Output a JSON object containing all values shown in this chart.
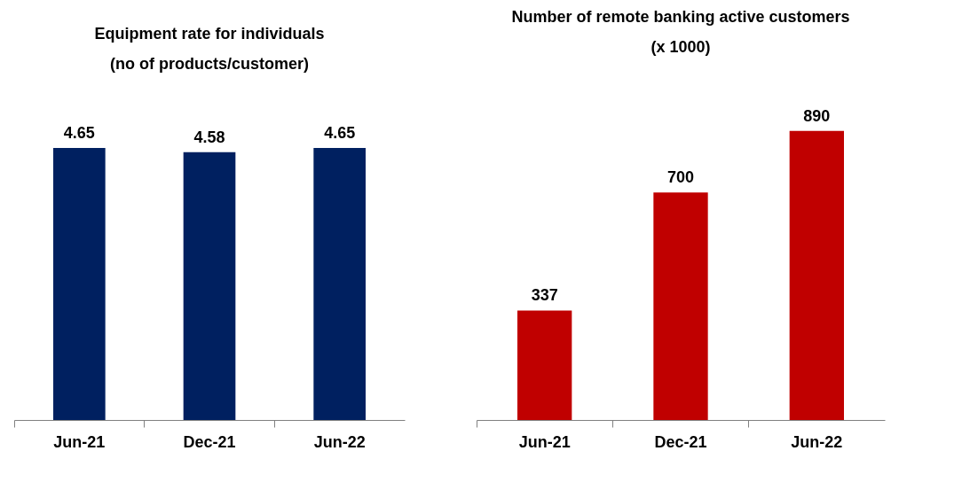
{
  "chart_data": [
    {
      "type": "bar",
      "title": "Equipment rate for individuals\n(no of products/customer)",
      "categories": [
        "Jun-21",
        "Dec-21",
        "Jun-22"
      ],
      "values": [
        4.65,
        4.58,
        4.65
      ],
      "color": "#002060",
      "data_labels": true,
      "tick_labels": "x"
    },
    {
      "type": "bar",
      "title": "Number of remote banking active customers\n(x 1000)",
      "categories": [
        "Jun-21",
        "Dec-21",
        "Jun-22"
      ],
      "values": [
        337,
        700,
        890
      ],
      "color": "#c00000",
      "data_labels": true,
      "tick_labels": "x"
    }
  ]
}
